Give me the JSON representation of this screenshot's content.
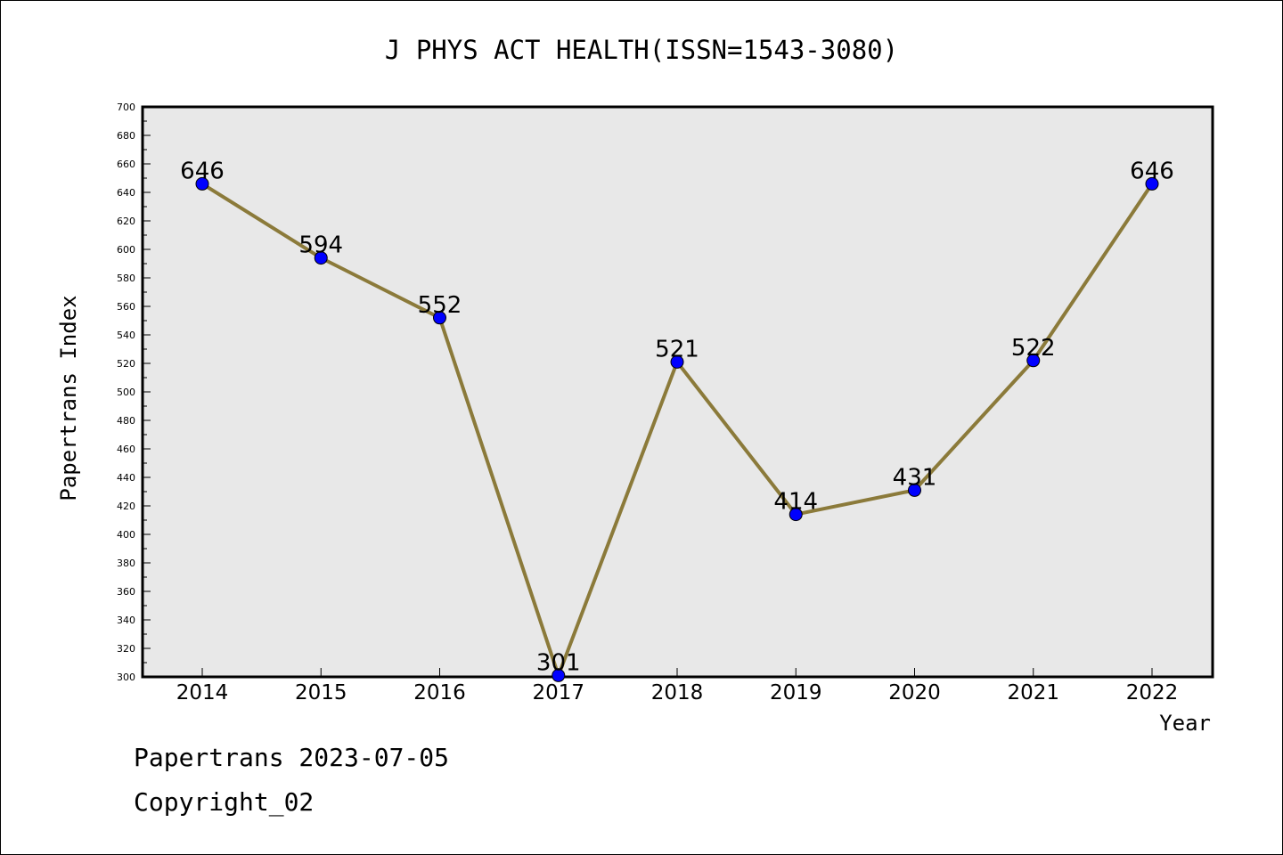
{
  "chart_data": {
    "type": "line",
    "title": "J PHYS ACT HEALTH(ISSN=1543-3080)",
    "xlabel": "Year",
    "ylabel": "Papertrans Index",
    "categories": [
      "2014",
      "2015",
      "2016",
      "2017",
      "2018",
      "2019",
      "2020",
      "2021",
      "2022"
    ],
    "values": [
      646,
      594,
      552,
      301,
      521,
      414,
      431,
      522,
      646
    ],
    "data_labels": [
      "646",
      "594",
      "552",
      "301",
      "521",
      "414",
      "431",
      "522",
      "646"
    ],
    "ylim": [
      300,
      700
    ],
    "yticks": [
      "300",
      "320",
      "340",
      "360",
      "380",
      "400",
      "420",
      "440",
      "460",
      "480",
      "500",
      "520",
      "540",
      "560",
      "580",
      "600",
      "620",
      "640",
      "660",
      "680",
      "700"
    ],
    "grid": false,
    "legend": "none",
    "colors": {
      "line": "#8b7a3a",
      "marker": "#0000ff",
      "plot_background": "#e8e8e8"
    }
  },
  "footer": {
    "date_line": "Papertrans 2023-07-05",
    "copyright_line": "Copyright_02"
  }
}
